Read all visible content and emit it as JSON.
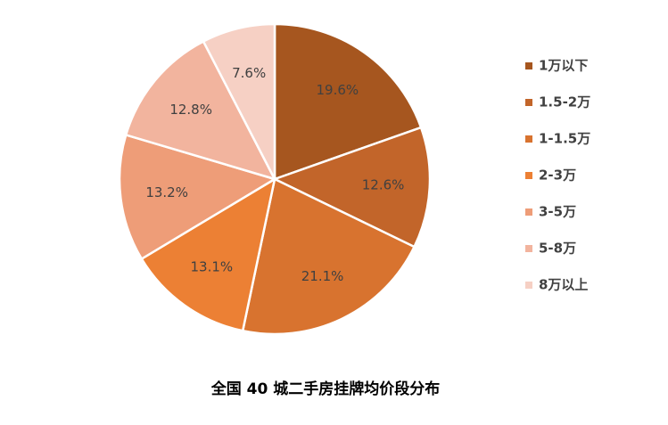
{
  "chart_data": {
    "type": "pie",
    "title": "全国 40 城二手房挂牌均价段分布",
    "categories": [
      "1万以下",
      "1.5-2万",
      "1-1.5万",
      "2-3万",
      "3-5万",
      "5-8万",
      "8万以上"
    ],
    "values": [
      19.6,
      12.6,
      21.1,
      13.1,
      13.2,
      12.8,
      7.6
    ],
    "value_labels": [
      "19.6%",
      "12.6%",
      "21.1%",
      "13.1%",
      "13.2%",
      "12.8%",
      "7.6%"
    ],
    "colors": [
      "#a6561f",
      "#c2652a",
      "#d8732f",
      "#ec8034",
      "#ee9d78",
      "#f2b49e",
      "#f6d0c4"
    ],
    "legend": "right"
  }
}
